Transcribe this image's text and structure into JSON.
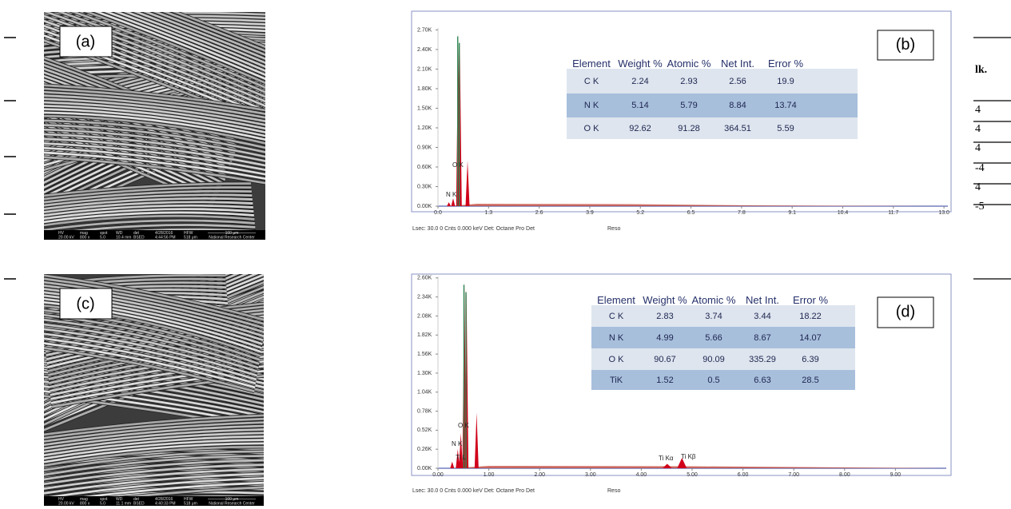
{
  "panels": {
    "a": {
      "label": "(a)",
      "footer": [
        {
          "top": "HV",
          "bottom": "20.00 kV"
        },
        {
          "top": "mag",
          "bottom": "800 x"
        },
        {
          "top": "spot",
          "bottom": "5.0"
        },
        {
          "top": "WD",
          "bottom": "10.4 mm"
        },
        {
          "top": "det",
          "bottom": "BSED"
        },
        {
          "top": "4/28/2016",
          "bottom": "4:44:56 PM"
        },
        {
          "top": "HFW",
          "bottom": "518 μm"
        }
      ],
      "scale": "100 μm",
      "center": "National Research Center"
    },
    "c": {
      "label": "(c)",
      "footer": [
        {
          "top": "HV",
          "bottom": "20.00 kV"
        },
        {
          "top": "mag",
          "bottom": "800 x"
        },
        {
          "top": "spot",
          "bottom": "5.0"
        },
        {
          "top": "WD",
          "bottom": "11.1 mm"
        },
        {
          "top": "det",
          "bottom": "BSED"
        },
        {
          "top": "4/28/2016",
          "bottom": "4:40:33 PM"
        },
        {
          "top": "HFW",
          "bottom": "518 μm"
        }
      ],
      "scale": "100 μm",
      "center": "National Research Center"
    },
    "b": {
      "type": "spectrum",
      "label": "(b)",
      "xlim": [
        0,
        13.1
      ],
      "ylim": [
        0,
        2730
      ],
      "xticks": [
        {
          "value": 0,
          "label": "0.0"
        },
        1.3,
        2.6,
        3.9,
        5.2,
        6.5,
        7.8,
        9.1,
        10.4,
        11.7,
        {
          "value": 13,
          "label": "13.0"
        }
      ],
      "yticks": [
        {
          "value": 0,
          "label": "0.00K"
        },
        {
          "value": 300,
          "label": "0.30K"
        },
        {
          "value": 600,
          "label": "0.60K"
        },
        {
          "value": 900,
          "label": "0.90K"
        },
        {
          "value": 1200,
          "label": "1.20K"
        },
        {
          "value": 1500,
          "label": "1.50K"
        },
        {
          "value": 1800,
          "label": "1.80K"
        },
        {
          "value": 2100,
          "label": "2.10K"
        },
        {
          "value": 2400,
          "label": "2.40K"
        },
        {
          "value": 2700,
          "label": "2.70K"
        }
      ],
      "peaks": [
        {
          "x": 0.28,
          "y": 60
        },
        {
          "x": 0.39,
          "y": 120
        },
        {
          "x": 0.52,
          "y": 2650
        },
        {
          "x": 0.56,
          "y": 2550
        },
        {
          "x": 0.76,
          "y": 700
        }
      ],
      "peak_labels": [
        "O K",
        "N K"
      ],
      "footer": "Lsec: 30.0 0 Cnts 0.000 keV Det: Octane Pro Det",
      "footer_2": "Reso",
      "table": {
        "header": [
          "Element",
          "Weight %",
          "Atomic %",
          "Net Int.",
          "Error %"
        ],
        "rows": [
          [
            "C K",
            2.24,
            2.93,
            2.56,
            19.9
          ],
          [
            "N K",
            5.14,
            5.79,
            8.84,
            13.74
          ],
          [
            "O K",
            92.62,
            91.28,
            364.51,
            5.59
          ]
        ]
      }
    },
    "d": {
      "type": "spectrum",
      "label": "(d)",
      "xlim": [
        0,
        10
      ],
      "ylim": [
        0,
        2620
      ],
      "xticks": [
        {
          "value": 0,
          "label": "0.00"
        },
        {
          "value": 1,
          "label": "1.00"
        },
        {
          "value": 2,
          "label": "2.00"
        },
        {
          "value": 3,
          "label": "3.00"
        },
        {
          "value": 4,
          "label": "4.00"
        },
        {
          "value": 5,
          "label": "5.00"
        },
        {
          "value": 6,
          "label": "6.00"
        },
        {
          "value": 7,
          "label": "7.00"
        },
        {
          "value": 8,
          "label": "8.00"
        },
        {
          "value": 9,
          "label": "9.00"
        }
      ],
      "yticks": [
        {
          "value": 0,
          "label": "0.00K"
        },
        {
          "value": 260,
          "label": "0.26K"
        },
        {
          "value": 520,
          "label": "0.52K"
        },
        {
          "value": 780,
          "label": "0.78K"
        },
        {
          "value": 1040,
          "label": "1.04K"
        },
        {
          "value": 1300,
          "label": "1.30K"
        },
        {
          "value": 1560,
          "label": "1.56K"
        },
        {
          "value": 1820,
          "label": "1.82K"
        },
        {
          "value": 2080,
          "label": "2.08K"
        },
        {
          "value": 2340,
          "label": "2.34K"
        },
        {
          "value": 2600,
          "label": "2.60K"
        }
      ],
      "peaks": [
        {
          "x": 0.28,
          "y": 90
        },
        {
          "x": 0.39,
          "y": 260
        },
        {
          "x": 0.45,
          "y": 480
        },
        {
          "x": 0.52,
          "y": 2550
        },
        {
          "x": 0.56,
          "y": 2450
        },
        {
          "x": 0.76,
          "y": 760
        },
        {
          "x": 4.51,
          "y": 60
        },
        {
          "x": 4.8,
          "y": 140
        }
      ],
      "peak_labels": [
        "O K",
        "N K",
        "Ti L",
        "Ti Kα",
        "Ti Kβ"
      ],
      "footer": "Lsec: 30.0 0 Cnts 0.000 keV Det: Octane Pro Det",
      "footer_2": "Reso",
      "table": {
        "header": [
          "Element",
          "Weight %",
          "Atomic %",
          "Net Int.",
          "Error %"
        ],
        "rows": [
          [
            "C K",
            2.83,
            3.74,
            3.44,
            18.22
          ],
          [
            "N K",
            4.99,
            5.66,
            8.67,
            14.07
          ],
          [
            "O K",
            90.67,
            90.09,
            335.29,
            6.39
          ],
          [
            "TiK",
            1.52,
            0.5,
            6.63,
            28.5
          ]
        ]
      }
    }
  },
  "right_fragments": [
    "lk.",
    "4",
    "4",
    "4",
    "-4",
    "4",
    "-5"
  ]
}
